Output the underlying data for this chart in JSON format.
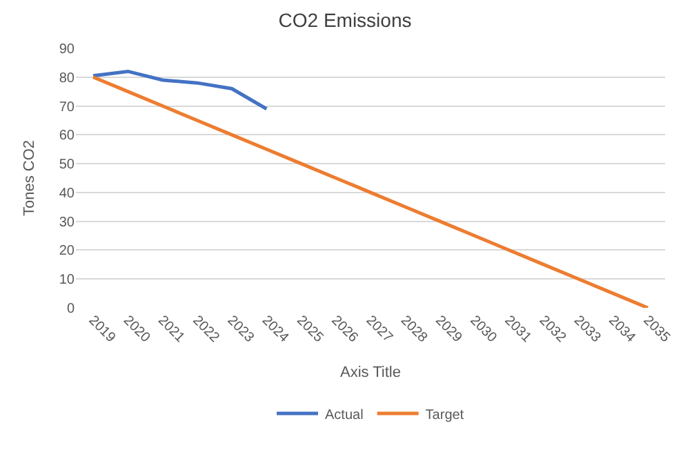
{
  "chart_data": {
    "type": "line",
    "title": "CO2 Emissions",
    "xlabel": "Axis Title",
    "ylabel": "Tones CO2",
    "categories": [
      "2019",
      "2020",
      "2021",
      "2022",
      "2023",
      "2024",
      "2025",
      "2026",
      "2027",
      "2028",
      "2029",
      "2030",
      "2031",
      "2032",
      "2033",
      "2034",
      "2035"
    ],
    "series": [
      {
        "name": "Actual",
        "color": "#4472c4",
        "values": [
          80.5,
          82,
          79,
          78,
          76,
          69,
          null,
          null,
          null,
          null,
          null,
          null,
          null,
          null,
          null,
          null,
          null
        ]
      },
      {
        "name": "Target",
        "color": "#ed7d31",
        "values": [
          80,
          75,
          70,
          65,
          60,
          55,
          50,
          45,
          40,
          35,
          30,
          25,
          20,
          15,
          10,
          5,
          0
        ]
      }
    ],
    "ylim": [
      0,
      90
    ],
    "yticks": [
      0,
      10,
      20,
      30,
      40,
      50,
      60,
      70,
      80,
      90
    ],
    "grid": "y",
    "legend": "bottom",
    "marker": "none",
    "line_style": "solid"
  }
}
